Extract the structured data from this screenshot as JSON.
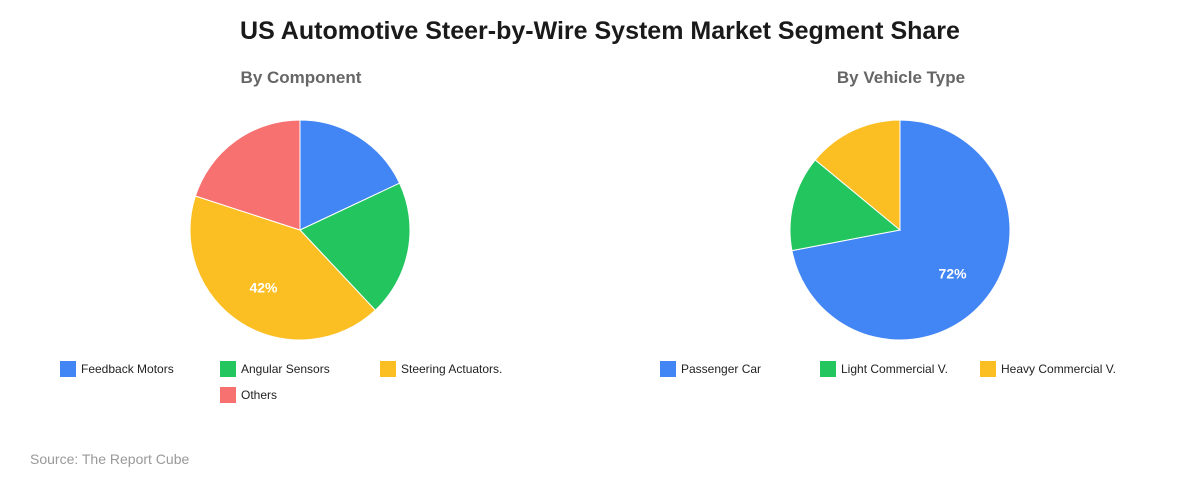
{
  "title": "US Automotive Steer-by-Wire System Market Segment Share",
  "source": "Source: The Report Cube",
  "chart_data": [
    {
      "type": "pie",
      "title": "By Component",
      "categories": [
        "Feedback Motors",
        "Angular Sensors",
        "Steering Actuators.",
        "Others"
      ],
      "values": [
        18,
        20,
        42,
        20
      ],
      "colors": [
        "#4285f4",
        "#22c55e",
        "#fbbf24",
        "#f87171"
      ],
      "data_labels": [
        "",
        "",
        "42%",
        ""
      ],
      "start_angle_deg": 0,
      "legend_position": "bottom"
    },
    {
      "type": "pie",
      "title": "By Vehicle Type",
      "categories": [
        "Passenger Car",
        "Light Commercial V.",
        "Heavy Commercial V."
      ],
      "values": [
        72,
        14,
        14
      ],
      "colors": [
        "#4285f4",
        "#22c55e",
        "#fbbf24"
      ],
      "data_labels": [
        "72%",
        "",
        ""
      ],
      "start_angle_deg": 0,
      "legend_position": "bottom"
    }
  ]
}
